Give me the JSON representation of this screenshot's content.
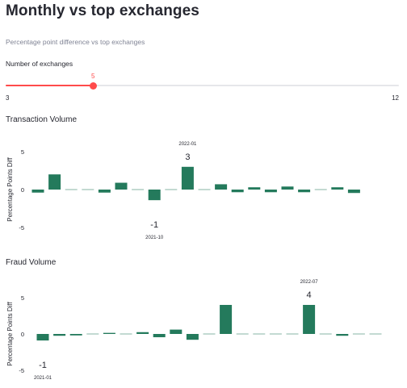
{
  "page": {
    "title": "Monthly vs top exchanges",
    "subtitle": "Percentage point difference vs top exchanges"
  },
  "slider": {
    "label": "Number of exchanges",
    "value": 5,
    "min": 3,
    "max": 12,
    "min_label": "3",
    "max_label": "12",
    "value_label": "5",
    "accent_color": "#ff4b4b"
  },
  "charts": [
    {
      "section_title": "Transaction Volume",
      "chart_data": {
        "type": "bar",
        "ylabel": "Percentage Points Diff",
        "xlabel": "",
        "ylim": [
          -5,
          5
        ],
        "yticks": [
          5,
          0,
          -5
        ],
        "color": "#247a5c",
        "values": [
          -0.4,
          2.0,
          0.05,
          -0.05,
          -0.4,
          0.9,
          -0.05,
          -1.4,
          -0.05,
          3.0,
          -0.1,
          0.7,
          -0.35,
          0.3,
          -0.35,
          0.4,
          -0.35,
          0.05,
          0.3,
          -0.45
        ],
        "annotations": [
          {
            "index": 9,
            "date": "2022-01",
            "value_label": "3",
            "position": "above"
          },
          {
            "index": 7,
            "date": "2021-10",
            "value_label": "-1",
            "position": "below"
          }
        ]
      }
    },
    {
      "section_title": "Fraud Volume",
      "chart_data": {
        "type": "bar",
        "ylabel": "Percentage Points Diff",
        "xlabel": "",
        "ylim": [
          -5,
          5
        ],
        "yticks": [
          5,
          0,
          -5
        ],
        "color": "#247a5c",
        "values": [
          -0.9,
          -0.25,
          -0.2,
          -0.05,
          0.15,
          -0.05,
          0.25,
          -0.45,
          0.6,
          -0.8,
          0.05,
          4.0,
          0.02,
          -0.05,
          -0.1,
          -0.1,
          4.0,
          -0.1,
          -0.25,
          0.02,
          -0.05
        ],
        "annotations": [
          {
            "index": 16,
            "date": "2022-07",
            "value_label": "4",
            "position": "above"
          },
          {
            "index": 0,
            "date": "2021-01",
            "value_label": "-1",
            "position": "below"
          }
        ]
      }
    }
  ]
}
